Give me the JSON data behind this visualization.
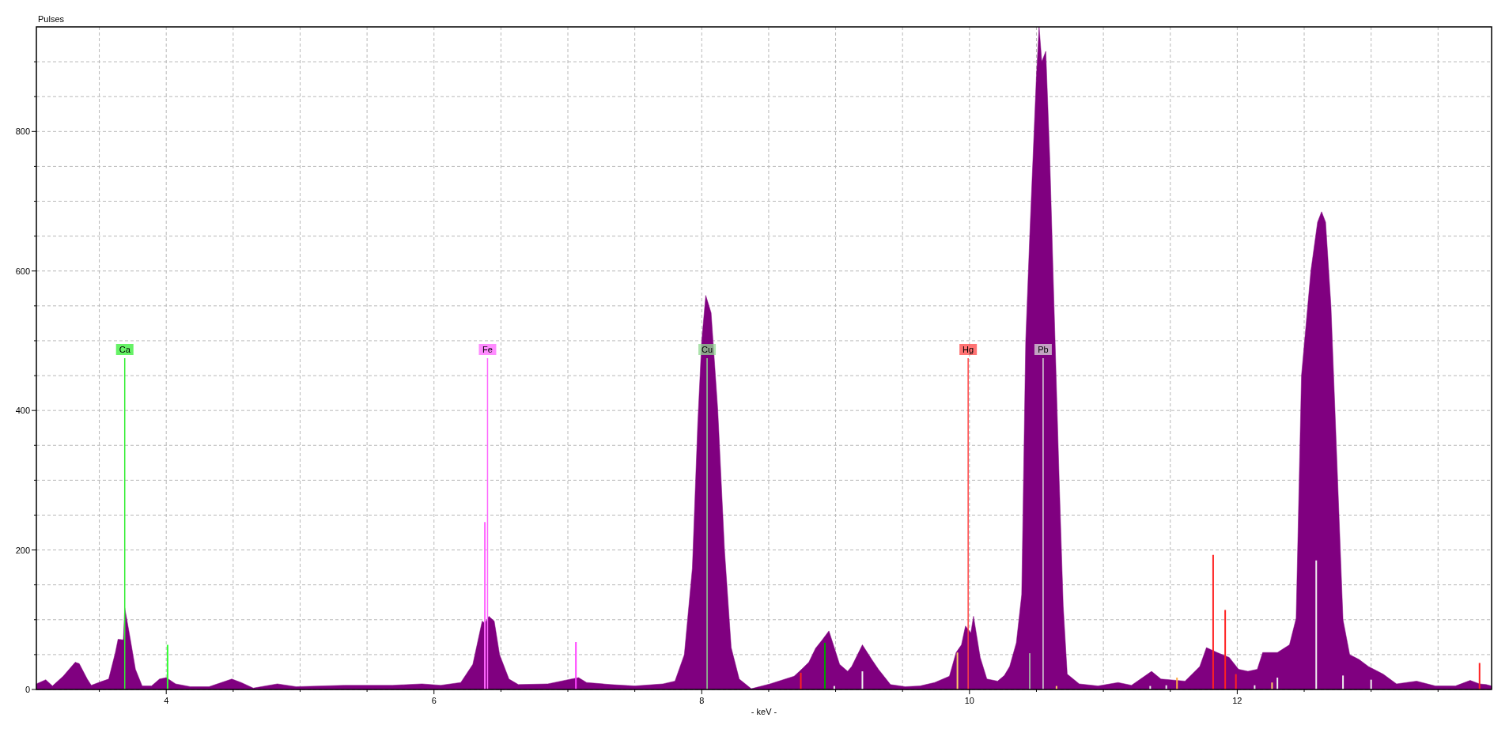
{
  "chart_data": {
    "type": "area",
    "xlabel": "- keV -",
    "ylabel": "Pulses",
    "xlim": [
      3.03,
      13.9
    ],
    "ylim": [
      0,
      950
    ],
    "xticks": [
      {
        "value": 3.5,
        "label": null
      },
      4,
      {
        "value": 4.5,
        "label": null
      },
      {
        "value": 5,
        "label": null
      },
      {
        "value": 5.5,
        "label": null
      },
      6,
      {
        "value": 6.5,
        "label": null
      },
      {
        "value": 7,
        "label": null
      },
      {
        "value": 7.5,
        "label": null
      },
      8,
      {
        "value": 8.5,
        "label": null
      },
      {
        "value": 9,
        "label": null
      },
      {
        "value": 9.5,
        "label": null
      },
      10,
      {
        "value": 10.5,
        "label": null
      },
      {
        "value": 11,
        "label": null
      },
      {
        "value": 11.5,
        "label": null
      },
      12,
      {
        "value": 12.5,
        "label": null
      },
      {
        "value": 13,
        "label": null
      },
      {
        "value": 13.5,
        "label": null
      }
    ],
    "yticks": [
      0,
      {
        "value": 50,
        "label": null
      },
      {
        "value": 100,
        "label": null
      },
      {
        "value": 150,
        "label": null
      },
      200,
      {
        "value": 250,
        "label": null
      },
      {
        "value": 300,
        "label": null
      },
      {
        "value": 350,
        "label": null
      },
      400,
      {
        "value": 450,
        "label": null
      },
      {
        "value": 500,
        "label": null
      },
      {
        "value": 550,
        "label": null
      },
      600,
      {
        "value": 650,
        "label": null
      },
      {
        "value": 700,
        "label": null
      },
      {
        "value": 750,
        "label": null
      },
      800,
      {
        "value": 850,
        "label": null
      },
      {
        "value": 900,
        "label": null
      }
    ],
    "grid": true,
    "series": [
      {
        "color": "#800080",
        "x": [
          3.03,
          3.1,
          3.15,
          3.23,
          3.32,
          3.35,
          3.41,
          3.44,
          3.51,
          3.57,
          3.62,
          3.64,
          3.68,
          3.69,
          3.73,
          3.77,
          3.82,
          3.89,
          3.95,
          4.0,
          4.07,
          4.18,
          4.32,
          4.49,
          4.56,
          4.65,
          4.83,
          4.97,
          5.33,
          5.69,
          5.91,
          6.05,
          6.2,
          6.29,
          6.36,
          6.38,
          6.41,
          6.45,
          6.49,
          6.56,
          6.63,
          6.85,
          7.0,
          7.08,
          7.14,
          7.32,
          7.5,
          7.71,
          7.8,
          7.87,
          7.93,
          7.97,
          8.0,
          8.03,
          8.07,
          8.12,
          8.17,
          8.22,
          8.28,
          8.37,
          8.51,
          8.69,
          8.73,
          8.8,
          8.85,
          8.9,
          8.95,
          8.99,
          9.03,
          9.09,
          9.12,
          9.2,
          9.27,
          9.32,
          9.41,
          9.52,
          9.63,
          9.74,
          9.85,
          9.9,
          9.94,
          9.97,
          10.01,
          10.03,
          10.08,
          10.13,
          10.21,
          10.26,
          10.3,
          10.35,
          10.39,
          10.42,
          10.45,
          10.5,
          10.52,
          10.54,
          10.57,
          10.6,
          10.63,
          10.67,
          10.7,
          10.73,
          10.82,
          10.96,
          11.11,
          11.21,
          11.36,
          11.43,
          11.61,
          11.72,
          11.77,
          11.85,
          11.94,
          12.01,
          12.08,
          12.15,
          12.19,
          12.3,
          12.39,
          12.44,
          12.48,
          12.55,
          12.6,
          12.63,
          12.66,
          12.7,
          12.75,
          12.79,
          12.84,
          12.91,
          12.98,
          13.09,
          13.19,
          13.34,
          13.48,
          13.63,
          13.74,
          13.81,
          13.86,
          13.9
        ],
        "values": [
          8,
          14,
          5,
          19,
          39,
          37,
          15,
          6,
          11,
          15,
          53,
          72,
          71,
          117,
          74,
          29,
          5,
          5,
          15,
          17,
          8,
          4,
          4,
          15,
          10,
          2,
          8,
          4,
          6,
          6,
          8,
          6,
          10,
          36,
          98,
          95,
          105,
          98,
          50,
          15,
          7,
          8,
          14,
          17,
          10,
          7,
          5,
          8,
          12,
          50,
          174,
          380,
          500,
          565,
          540,
          400,
          200,
          60,
          15,
          1,
          8,
          19,
          26,
          39,
          59,
          71,
          84,
          60,
          36,
          26,
          33,
          64,
          43,
          29,
          7,
          4,
          5,
          10,
          19,
          53,
          64,
          91,
          81,
          105,
          46,
          15,
          12,
          20,
          33,
          67,
          136,
          500,
          650,
          880,
          950,
          900,
          915,
          760,
          560,
          300,
          120,
          22,
          8,
          5,
          10,
          6,
          26,
          15,
          12,
          33,
          60,
          53,
          46,
          29,
          26,
          29,
          53,
          53,
          64,
          102,
          450,
          600,
          670,
          685,
          670,
          550,
          300,
          100,
          50,
          43,
          33,
          22,
          8,
          12,
          5,
          5,
          13,
          8,
          7,
          5
        ]
      },
      {
        "type": "bar",
        "x": [
          4.01,
          6.38,
          7.06,
          8.74,
          8.92,
          8.99,
          9.2,
          9.91,
          10.45,
          10.65,
          11.35,
          11.47,
          11.55,
          11.82,
          11.91,
          11.99,
          12.13,
          12.26,
          12.3,
          12.59,
          12.79,
          13.0,
          13.81
        ],
        "values": [
          64,
          240,
          68,
          24,
          67,
          5,
          26,
          53,
          52,
          5,
          5,
          6,
          17,
          193,
          114,
          22,
          6,
          10,
          17,
          185,
          20,
          14,
          38
        ],
        "colors": [
          "#33ff33",
          "#ff66ff",
          "#ff44ff",
          "#ff2222",
          "#00a000",
          "#f0f0f0",
          "#f0f0f0",
          "#ffcc66",
          "#a0a0a0",
          "#ffcc66",
          "#f0f0f0",
          "#f0f0f0",
          "#ffaa44",
          "#ff2222",
          "#ff2222",
          "#ff2222",
          "#f0f0f0",
          "#ffcc66",
          "#f0f0f0",
          "#f0f0f0",
          "#f0f0f0",
          "#f0f0f0",
          "#ff2222"
        ]
      }
    ],
    "ref_lines": [
      {
        "axis": "x",
        "value": 3.69,
        "label": "Ca",
        "color": "#33ee33"
      },
      {
        "axis": "x",
        "value": 6.4,
        "label": "Fe",
        "color": "#ff66ff"
      },
      {
        "axis": "x",
        "value": 8.04,
        "label": "Cu",
        "color": "#90d890"
      },
      {
        "axis": "x",
        "value": 9.99,
        "label": "Hg",
        "color": "#ff4444"
      },
      {
        "axis": "x",
        "value": 10.55,
        "label": "Pb",
        "color": "#d8d8d8"
      }
    ]
  }
}
